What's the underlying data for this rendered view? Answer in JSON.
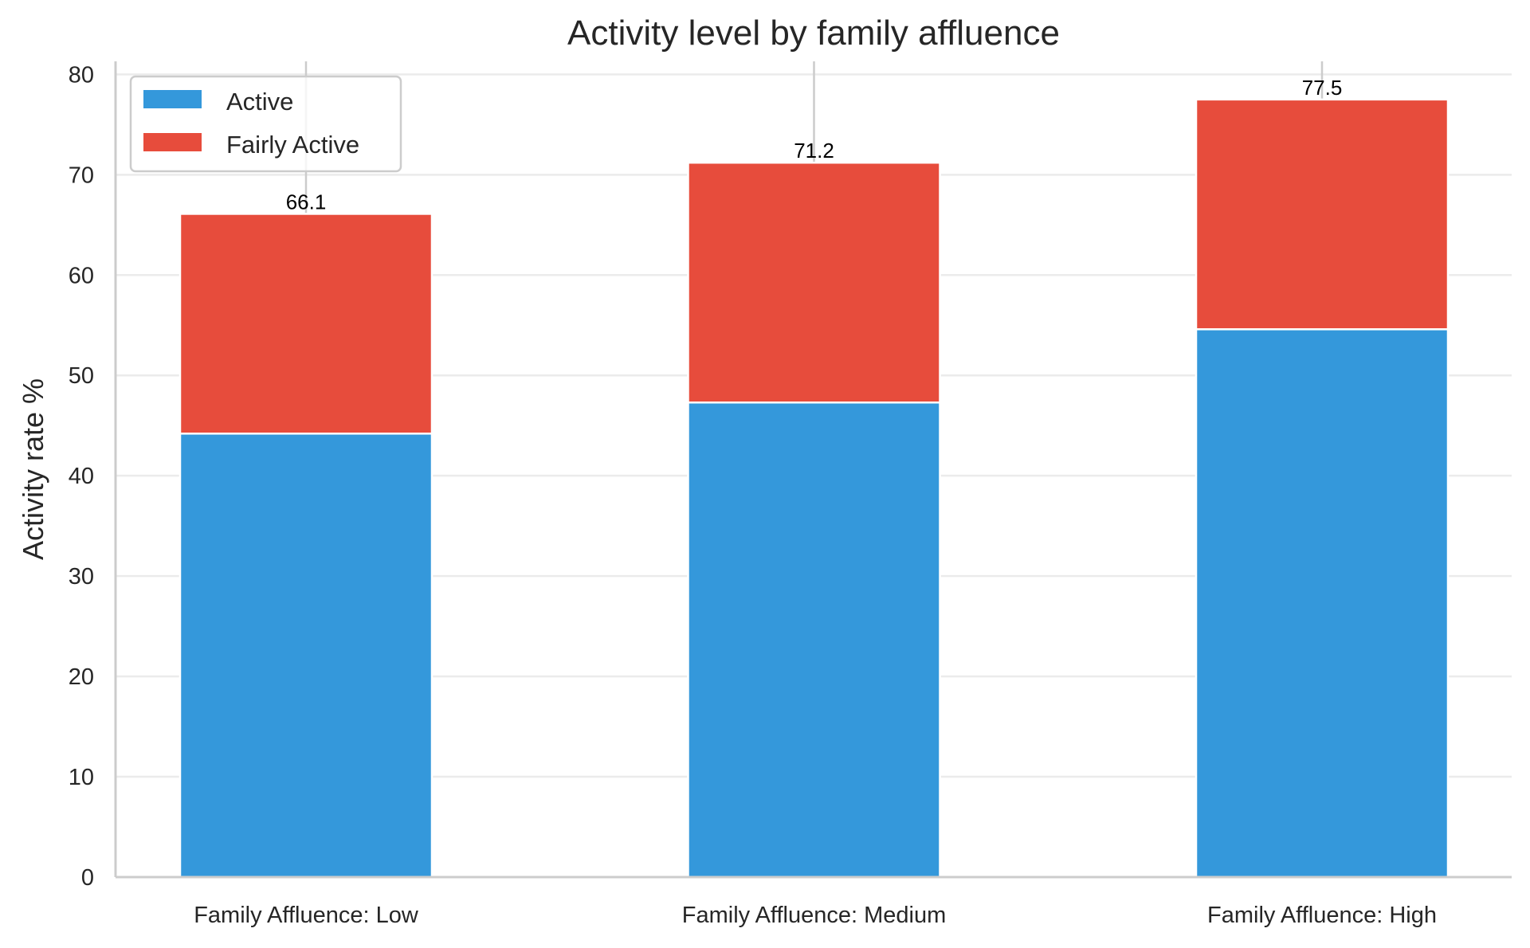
{
  "chart_data": {
    "type": "bar",
    "stacked": true,
    "title": "Activity level by family affluence",
    "xlabel": "",
    "ylabel": "Activity rate %",
    "ylim": [
      0,
      81.3
    ],
    "yticks": [
      0,
      10,
      20,
      30,
      40,
      50,
      60,
      70,
      80
    ],
    "grid": true,
    "legend_position": "top-left",
    "categories": [
      "Family Affluence: Low",
      "Family Affluence: Medium",
      "Family Affluence: High"
    ],
    "series": [
      {
        "name": "Active",
        "color": "#3498db",
        "values": [
          44.2,
          47.3,
          54.6
        ]
      },
      {
        "name": "Fairly Active",
        "color": "#e74c3c",
        "values": [
          21.9,
          23.9,
          22.9
        ]
      }
    ],
    "totals": [
      "66.1",
      "71.2",
      "77.5"
    ]
  }
}
